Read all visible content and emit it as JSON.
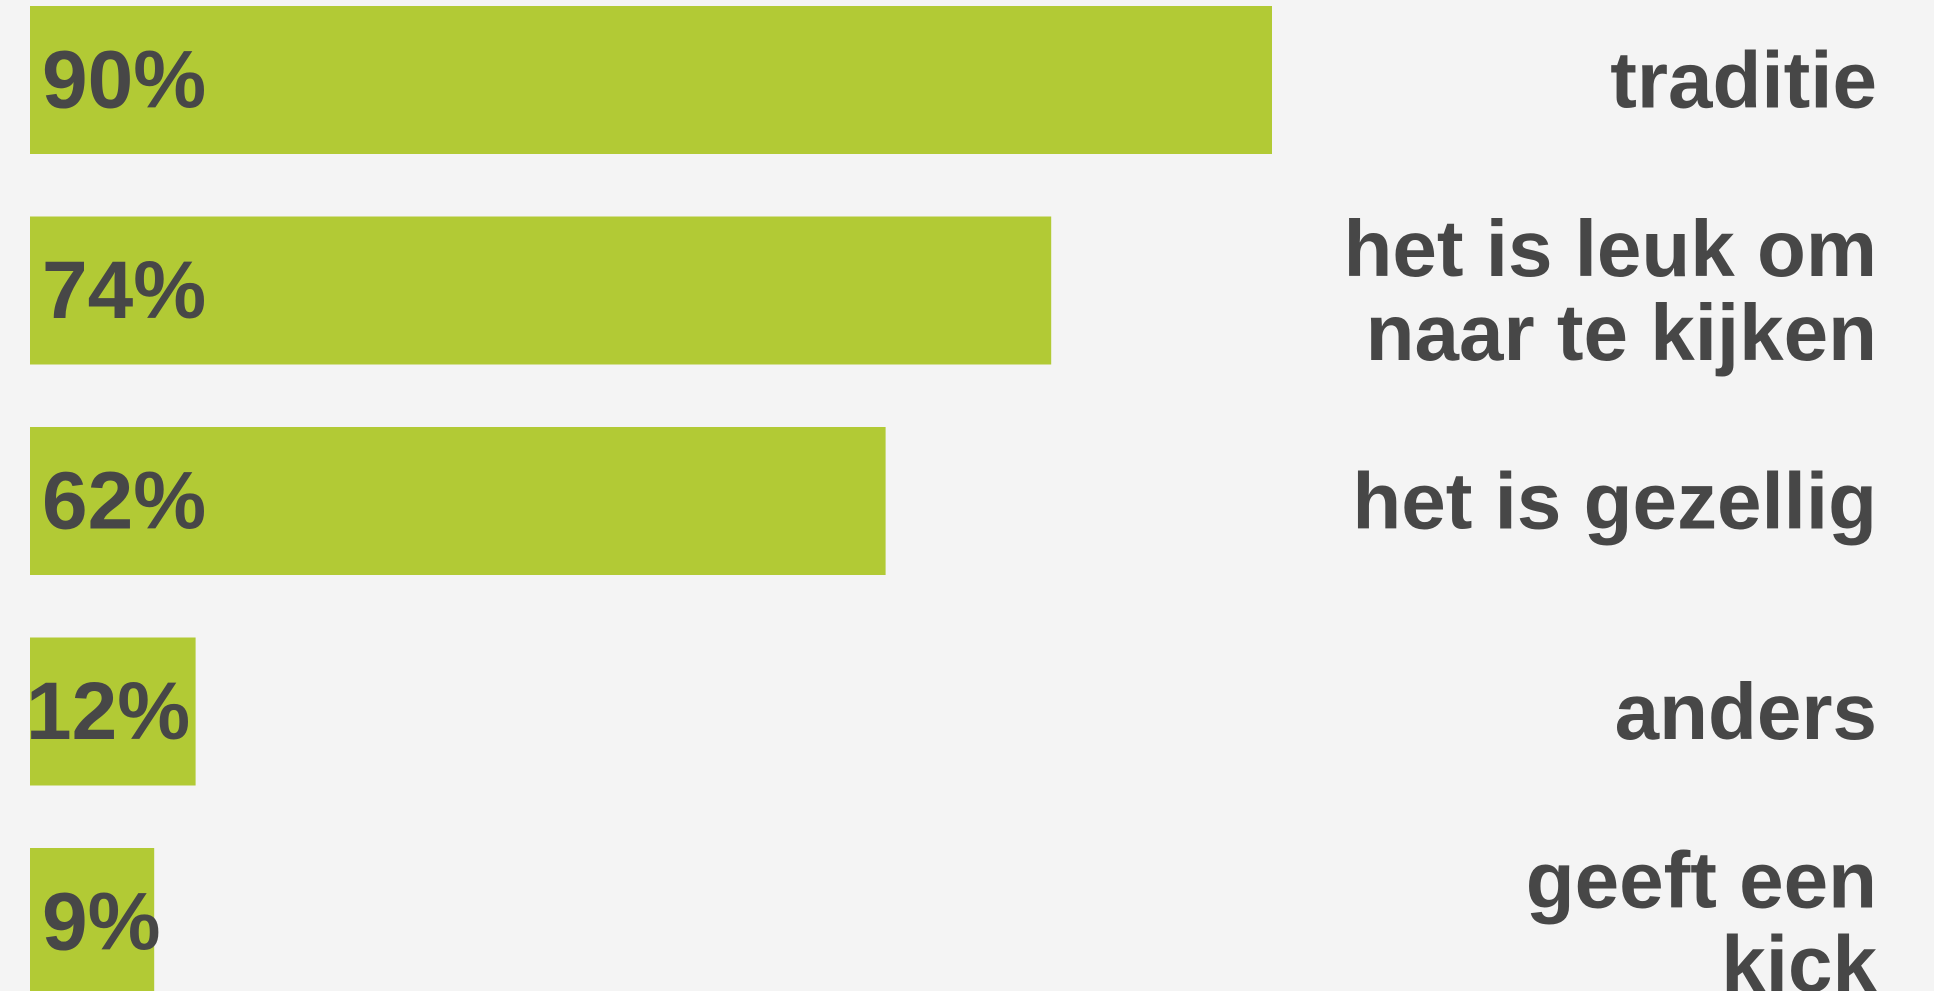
{
  "chart_data": {
    "type": "bar",
    "orientation": "horizontal",
    "title": "",
    "xlabel": "",
    "ylabel": "",
    "grid": false,
    "legend": "none",
    "xlim": [
      0,
      100
    ],
    "categories": [
      "traditie",
      "het is leuk om naar te kijken",
      "het is gezellig",
      "anders",
      "geeft een kick"
    ],
    "category_lines": [
      [
        "traditie"
      ],
      [
        "het is leuk om",
        "naar te kijken"
      ],
      [
        "het is gezellig"
      ],
      [
        "anders"
      ],
      [
        "geeft een",
        "kick"
      ]
    ],
    "values": [
      90,
      74,
      62,
      12,
      9
    ],
    "value_labels": [
      "90%",
      "74%",
      "62%",
      "12%",
      "9%"
    ],
    "series": [
      {
        "values": [
          90,
          74,
          62,
          12,
          9
        ],
        "color": "#b2ca35"
      }
    ],
    "text_color": "#474747",
    "background_color": "#f4f4f4"
  }
}
